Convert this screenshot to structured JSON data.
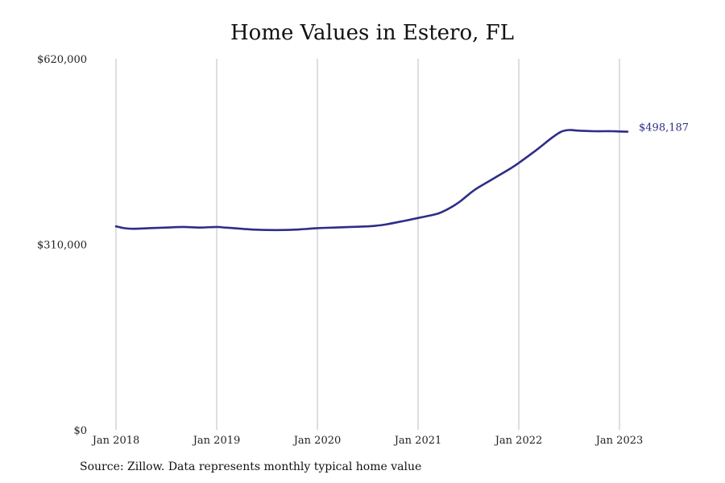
{
  "chart_data": {
    "type": "line",
    "title": "Home Values in Estero, FL",
    "xlabel": "",
    "ylabel": "",
    "ylim": [
      0,
      620000
    ],
    "y_ticks": [
      0,
      310000,
      620000
    ],
    "y_tick_labels": [
      "$0",
      "$310,000",
      "$620,000"
    ],
    "x_ticks": [
      2018,
      2019,
      2020,
      2021,
      2022,
      2023
    ],
    "x_tick_labels": [
      "Jan 2018",
      "Jan 2019",
      "Jan 2020",
      "Jan 2021",
      "Jan 2022",
      "Jan 2023"
    ],
    "xlim": [
      2018,
      2023.5
    ],
    "grid": "vertical",
    "legend": "none",
    "series": [
      {
        "color": "#2e2d88",
        "x": [
          2018.0,
          2018.08,
          2018.17,
          2018.33,
          2018.5,
          2018.67,
          2018.83,
          2019.0,
          2019.08,
          2019.17,
          2019.33,
          2019.5,
          2019.67,
          2019.83,
          2020.0,
          2020.17,
          2020.33,
          2020.5,
          2020.58,
          2020.67,
          2020.83,
          2021.0,
          2021.17,
          2021.25,
          2021.33,
          2021.42,
          2021.5,
          2021.58,
          2021.75,
          2021.92,
          2022.0,
          2022.17,
          2022.33,
          2022.42,
          2022.5,
          2022.58,
          2022.75,
          2022.92,
          2023.0,
          2023.08
        ],
        "y": [
          340000,
          337000,
          336000,
          337000,
          338000,
          339000,
          338000,
          339000,
          338000,
          337000,
          335000,
          334000,
          334000,
          335000,
          337000,
          338000,
          339000,
          340000,
          341000,
          343000,
          348000,
          354000,
          360000,
          365000,
          372000,
          382000,
          393000,
          403000,
          420000,
          437000,
          446000,
          467000,
          488000,
          498000,
          501000,
          500000,
          499000,
          499000,
          498500,
          498187
        ]
      }
    ],
    "end_label": "$498,187",
    "source": "Source: Zillow. Data represents monthly typical home value"
  }
}
